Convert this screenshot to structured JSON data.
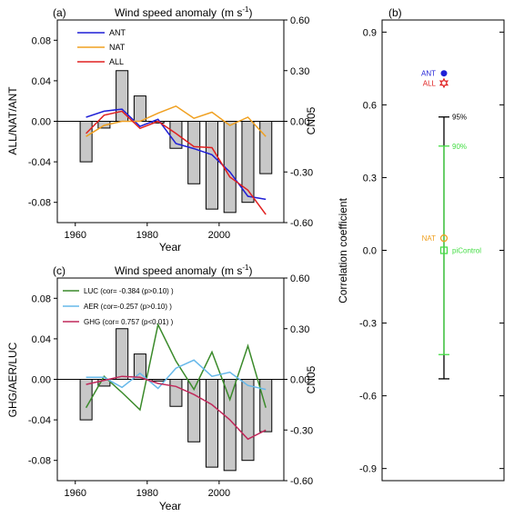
{
  "chart_data": [
    {
      "type": "bar+line",
      "panel_label": "(a)",
      "title": "Wind speed anomaly",
      "title_units": "(m s",
      "title_units_sup": "-1",
      "title_units_close": ")",
      "xlabel": "Year",
      "ylabel": "ALL/NAT/ANT",
      "y2label": "CN05",
      "xlim": [
        1955,
        2018
      ],
      "ylim": [
        -0.1,
        0.1
      ],
      "y2lim": [
        -0.6,
        0.6
      ],
      "xticks": [
        1960,
        1980,
        2000
      ],
      "yticks": [
        0.08,
        0.04,
        0.0,
        -0.04,
        -0.08
      ],
      "ytick_labels": [
        "0.08",
        "0.04",
        "0.00",
        "-0.04",
        "-0.08"
      ],
      "y2ticks": [
        0.6,
        0.3,
        0.0,
        -0.3,
        -0.6
      ],
      "y2tick_labels": [
        "0.60",
        "0.30",
        "0.00",
        "-0.30",
        "-0.60"
      ],
      "bar_color": "#c8c8c8",
      "bars": {
        "name": "CN05",
        "x": [
          1963,
          1968,
          1973,
          1978,
          1983,
          1988,
          1993,
          1998,
          2003,
          2008,
          2013
        ],
        "values": [
          -0.24,
          -0.04,
          0.3,
          0.15,
          -0.01,
          -0.16,
          -0.37,
          -0.52,
          -0.54,
          -0.48,
          -0.31
        ]
      },
      "series": [
        {
          "name": "ANT",
          "color": "#1f1fd6",
          "x": [
            1963,
            1968,
            1973,
            1978,
            1983,
            1988,
            1993,
            1998,
            2003,
            2008,
            2013
          ],
          "values": [
            0.004,
            0.01,
            0.012,
            -0.005,
            0.002,
            -0.022,
            -0.027,
            -0.033,
            -0.05,
            -0.074,
            -0.077
          ]
        },
        {
          "name": "NAT",
          "color": "#f0a020",
          "x": [
            1963,
            1968,
            1973,
            1978,
            1983,
            1988,
            1993,
            1998,
            2003,
            2008,
            2013
          ],
          "values": [
            -0.015,
            -0.004,
            0.0,
            0.0,
            0.008,
            0.015,
            0.003,
            0.009,
            -0.004,
            0.004,
            -0.015
          ]
        },
        {
          "name": "ALL",
          "color": "#e02020",
          "x": [
            1963,
            1968,
            1973,
            1978,
            1983,
            1988,
            1993,
            1998,
            2003,
            2008,
            2013
          ],
          "values": [
            -0.012,
            0.006,
            0.01,
            -0.007,
            0.0,
            -0.012,
            -0.025,
            -0.026,
            -0.055,
            -0.068,
            -0.092
          ]
        }
      ]
    },
    {
      "type": "bar+line",
      "panel_label": "(c)",
      "title": "Wind speed anomaly",
      "title_units": "(m s",
      "title_units_sup": "-1",
      "title_units_close": ")",
      "xlabel": "Year",
      "ylabel": "GHG/AER/LUC",
      "y2label": "CN05",
      "xlim": [
        1955,
        2018
      ],
      "ylim": [
        -0.1,
        0.1
      ],
      "y2lim": [
        -0.6,
        0.6
      ],
      "xticks": [
        1960,
        1980,
        2000
      ],
      "yticks": [
        0.08,
        0.04,
        0.0,
        -0.04,
        -0.08
      ],
      "ytick_labels": [
        "0.08",
        "0.04",
        "0.00",
        "-0.04",
        "-0.08"
      ],
      "y2ticks": [
        0.6,
        0.3,
        0.0,
        -0.3,
        -0.6
      ],
      "y2tick_labels": [
        "0.60",
        "0.30",
        "0.00",
        "-0.30",
        "-0.60"
      ],
      "bar_color": "#c8c8c8",
      "bars": {
        "name": "CN05",
        "x": [
          1963,
          1968,
          1973,
          1978,
          1983,
          1988,
          1993,
          1998,
          2003,
          2008,
          2013
        ],
        "values": [
          -0.24,
          -0.04,
          0.3,
          0.15,
          -0.01,
          -0.16,
          -0.37,
          -0.52,
          -0.54,
          -0.48,
          -0.31
        ]
      },
      "series": [
        {
          "name": "LUC",
          "legend": "LUC (cor= -0.384 (p>0.10) )",
          "color": "#3a8a2a",
          "x": [
            1963,
            1968,
            1973,
            1978,
            1983,
            1988,
            1993,
            1998,
            2003,
            2008,
            2013
          ],
          "values": [
            -0.028,
            0.003,
            -0.013,
            -0.03,
            0.054,
            0.018,
            -0.01,
            0.027,
            -0.02,
            0.033,
            -0.028
          ]
        },
        {
          "name": "AER",
          "legend": "AER (cor=-0.257 (p>0.10) )",
          "color": "#66b8ea",
          "x": [
            1963,
            1968,
            1973,
            1978,
            1983,
            1988,
            1993,
            1998,
            2003,
            2008,
            2013
          ],
          "values": [
            0.002,
            0.002,
            -0.008,
            0.006,
            -0.009,
            0.011,
            0.019,
            0.003,
            0.007,
            -0.006,
            -0.01
          ]
        },
        {
          "name": "GHG",
          "legend": "GHG (cor= 0.757 (p<0.01) )",
          "color": "#c0285a",
          "x": [
            1963,
            1968,
            1973,
            1978,
            1983,
            1988,
            1993,
            1998,
            2003,
            2008,
            2013
          ],
          "values": [
            -0.005,
            -0.001,
            0.003,
            0.002,
            -0.004,
            -0.007,
            -0.015,
            -0.025,
            -0.04,
            -0.059,
            -0.05
          ]
        }
      ]
    },
    {
      "type": "scatter",
      "panel_label": "(b)",
      "ylabel": "Correlation coefficient",
      "ylim": [
        -0.95,
        0.95
      ],
      "yticks": [
        0.9,
        0.6,
        0.3,
        0.0,
        -0.3,
        -0.6,
        -0.9
      ],
      "ytick_labels": [
        "0.9",
        "0.6",
        "0.3",
        "0.0",
        "-0.3",
        "-0.6",
        "-0.9"
      ],
      "points": [
        {
          "name": "ANT",
          "value": 0.73,
          "color": "#1f1fd6",
          "marker": "filled-circle"
        },
        {
          "name": "ALL",
          "value": 0.69,
          "color": "#e02020",
          "marker": "star"
        },
        {
          "name": "NAT",
          "value": 0.05,
          "color": "#f0a020",
          "marker": "open-circle"
        },
        {
          "name": "piControl",
          "value": 0.0,
          "color": "#44dd44",
          "marker": "open-square"
        }
      ],
      "intervals": [
        {
          "name": "95%",
          "upper": 0.55,
          "lower": -0.53,
          "color": "#000000"
        },
        {
          "name": "90%",
          "upper": 0.43,
          "lower": -0.43,
          "color": "#44dd44"
        }
      ]
    }
  ]
}
